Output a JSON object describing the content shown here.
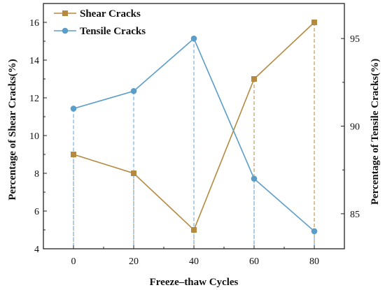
{
  "chart_data": {
    "type": "line",
    "title": "",
    "xlabel": "Freeze–thaw Cycles",
    "ylabel": "Percentage of Shear Cracks(%)",
    "y2label": "Percentage of Tensile Cracks(%)",
    "x": [
      0,
      20,
      40,
      60,
      80
    ],
    "x_ticks": [
      "0",
      "20",
      "40",
      "60",
      "80"
    ],
    "xlim": [
      -10,
      90
    ],
    "ylim": [
      4,
      17
    ],
    "y_ticks": [
      "4",
      "6",
      "8",
      "10",
      "12",
      "14",
      "16"
    ],
    "y2lim": [
      83,
      97
    ],
    "y2_ticks": [
      "85",
      "90",
      "95"
    ],
    "grid": false,
    "legend_position": "top-left",
    "series": [
      {
        "name": "Shear Cracks",
        "axis": "left",
        "color": "#b5893f",
        "marker": "square",
        "values": [
          9,
          8,
          5,
          13,
          16
        ]
      },
      {
        "name": "Tensile Cracks",
        "axis": "right",
        "color": "#5b9dc9",
        "marker": "circle",
        "values": [
          91,
          92,
          95,
          87,
          84
        ]
      }
    ]
  }
}
